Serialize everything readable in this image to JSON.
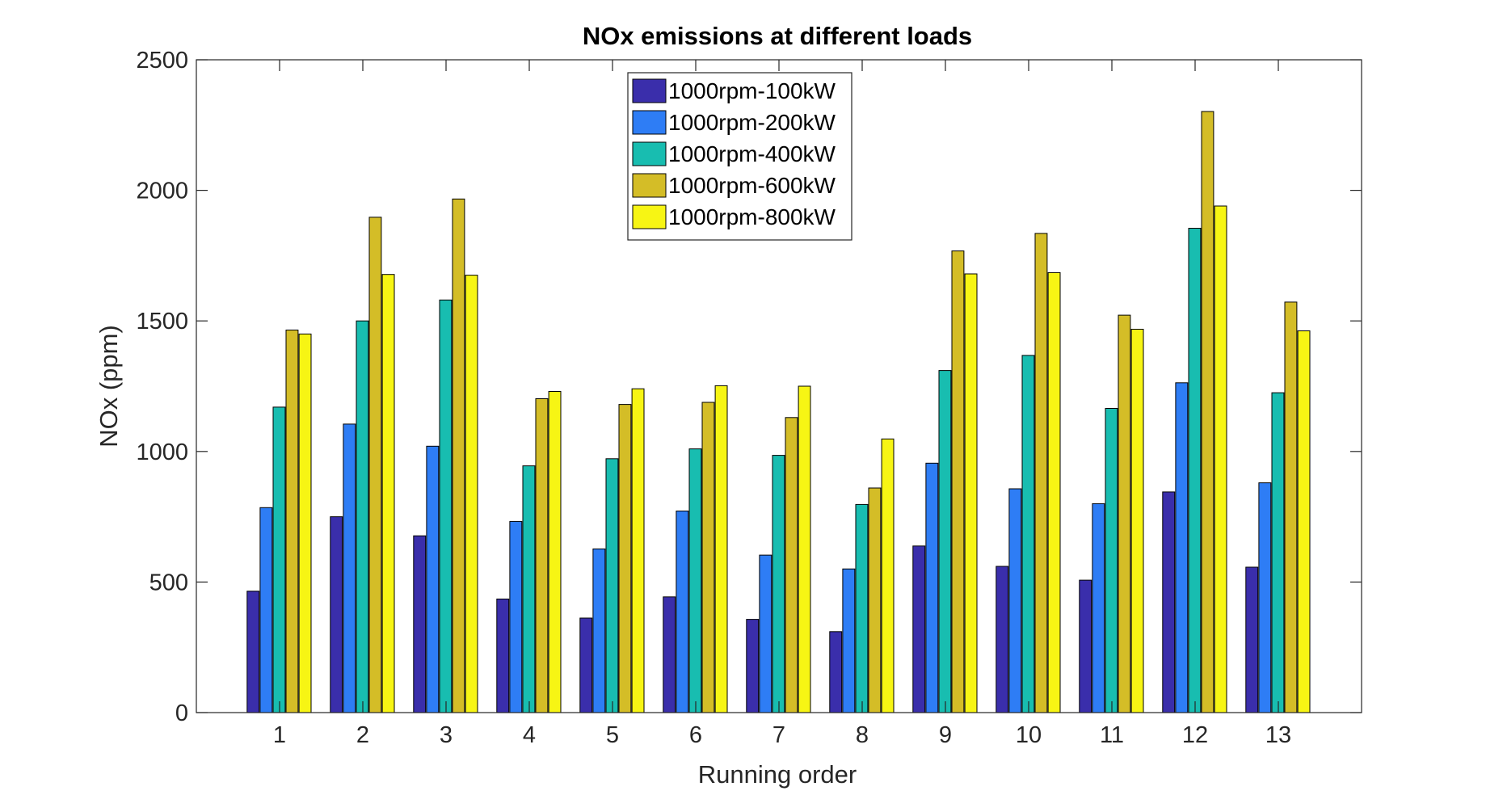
{
  "chart_data": {
    "type": "bar",
    "title": "NOx emissions at different loads",
    "xlabel": "Running order",
    "ylabel": "NOx (ppm)",
    "ylim": [
      0,
      2500
    ],
    "yticks": [
      0,
      500,
      1000,
      1500,
      2000,
      2500
    ],
    "grid": false,
    "legend_position": "top-center",
    "categories": [
      "1",
      "2",
      "3",
      "4",
      "5",
      "6",
      "7",
      "8",
      "9",
      "10",
      "11",
      "12",
      "13"
    ],
    "series": [
      {
        "name": "1000rpm-100kW",
        "color": "#3a2eab",
        "values": [
          465,
          750,
          677,
          435,
          362,
          443,
          357,
          310,
          638,
          560,
          507,
          845,
          557
        ]
      },
      {
        "name": "1000rpm-200kW",
        "color": "#2e7df5",
        "values": [
          785,
          1105,
          1020,
          732,
          627,
          772,
          603,
          550,
          955,
          857,
          800,
          1263,
          880
        ]
      },
      {
        "name": "1000rpm-400kW",
        "color": "#18bdb0",
        "values": [
          1170,
          1500,
          1580,
          945,
          972,
          1010,
          985,
          797,
          1310,
          1368,
          1165,
          1855,
          1225
        ]
      },
      {
        "name": "1000rpm-600kW",
        "color": "#d4bd27",
        "values": [
          1465,
          1897,
          1967,
          1202,
          1180,
          1188,
          1130,
          860,
          1768,
          1835,
          1522,
          2302,
          1572
        ]
      },
      {
        "name": "1000rpm-800kW",
        "color": "#f7f514",
        "values": [
          1450,
          1678,
          1675,
          1230,
          1240,
          1252,
          1250,
          1048,
          1680,
          1685,
          1468,
          1940,
          1462
        ]
      }
    ]
  }
}
